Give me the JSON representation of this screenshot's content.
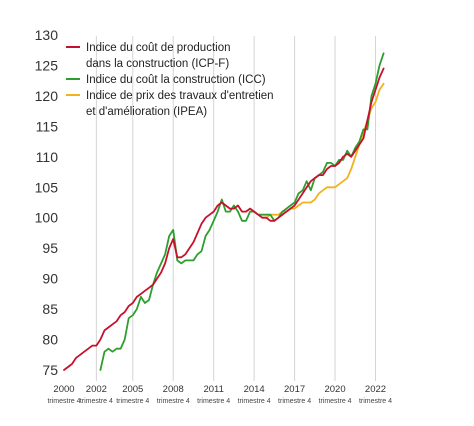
{
  "chart_data": {
    "type": "line",
    "title": "",
    "xlabel": "",
    "ylabel": "",
    "ylim": [
      75,
      130
    ],
    "xlim": [
      2000.75,
      2022.75
    ],
    "yticks": [
      75,
      80,
      85,
      90,
      95,
      100,
      105,
      110,
      115,
      120,
      125,
      130
    ],
    "xticks": [
      {
        "year": "2000",
        "sub": "trimestre 4",
        "x": 2000.75
      },
      {
        "year": "2002",
        "sub": "trimestre 4",
        "x": 2002.75
      },
      {
        "year": "2005",
        "sub": "trimestre 4",
        "x": 2005.0
      },
      {
        "year": "2008",
        "sub": "trimestre 4",
        "x": 2007.5
      },
      {
        "year": "2011",
        "sub": "trimestre 4",
        "x": 2010.0
      },
      {
        "year": "2014",
        "sub": "trimestre 4",
        "x": 2012.5
      },
      {
        "year": "2017",
        "sub": "trimestre 4",
        "x": 2015.0
      },
      {
        "year": "2020",
        "sub": "trimestre 4",
        "x": 2017.5
      },
      {
        "year": "2022",
        "sub": "trimestre 4",
        "x": 2020.0
      }
    ],
    "grid": "vertical",
    "legend_position": "top-left",
    "series": [
      {
        "name": "Indice du coût de production\ndans la construction (ICP-F)",
        "color": "#c8102e",
        "points": [
          [
            2000.75,
            75
          ],
          [
            2001.0,
            75.5
          ],
          [
            2001.25,
            76
          ],
          [
            2001.5,
            77
          ],
          [
            2001.75,
            77.5
          ],
          [
            2002.0,
            78
          ],
          [
            2002.25,
            78.5
          ],
          [
            2002.5,
            79
          ],
          [
            2002.75,
            79
          ],
          [
            2003.0,
            80
          ],
          [
            2003.25,
            81.5
          ],
          [
            2003.5,
            82
          ],
          [
            2003.75,
            82.5
          ],
          [
            2004.0,
            83
          ],
          [
            2004.25,
            84
          ],
          [
            2004.5,
            84.5
          ],
          [
            2004.75,
            85.5
          ],
          [
            2005.0,
            86
          ],
          [
            2005.25,
            87
          ],
          [
            2005.5,
            87.5
          ],
          [
            2005.75,
            88
          ],
          [
            2006.0,
            88.5
          ],
          [
            2006.25,
            89
          ],
          [
            2006.5,
            90
          ],
          [
            2006.75,
            91
          ],
          [
            2007.0,
            92.5
          ],
          [
            2007.25,
            95
          ],
          [
            2007.5,
            96.5
          ],
          [
            2007.75,
            93.5
          ],
          [
            2008.0,
            93.5
          ],
          [
            2008.25,
            94
          ],
          [
            2008.5,
            95
          ],
          [
            2008.75,
            96
          ],
          [
            2009.0,
            97.5
          ],
          [
            2009.25,
            99
          ],
          [
            2009.5,
            100
          ],
          [
            2009.75,
            100.5
          ],
          [
            2010.0,
            101
          ],
          [
            2010.25,
            102
          ],
          [
            2010.5,
            102.5
          ],
          [
            2010.75,
            102
          ],
          [
            2011.0,
            101.5
          ],
          [
            2011.25,
            101.5
          ],
          [
            2011.5,
            102
          ],
          [
            2011.75,
            101
          ],
          [
            2012.0,
            101
          ],
          [
            2012.25,
            101.5
          ],
          [
            2012.5,
            101
          ],
          [
            2012.75,
            100.5
          ],
          [
            2013.0,
            100
          ],
          [
            2013.25,
            100
          ],
          [
            2013.5,
            99.5
          ],
          [
            2013.75,
            99.5
          ],
          [
            2014.0,
            100
          ],
          [
            2014.25,
            100.5
          ],
          [
            2014.5,
            101
          ],
          [
            2014.75,
            101.5
          ],
          [
            2015.0,
            102
          ],
          [
            2015.25,
            103
          ],
          [
            2015.5,
            104
          ],
          [
            2015.75,
            105
          ],
          [
            2016.0,
            106
          ],
          [
            2016.25,
            106.5
          ],
          [
            2016.5,
            107
          ],
          [
            2016.75,
            107
          ],
          [
            2017.0,
            108
          ],
          [
            2017.25,
            108.5
          ],
          [
            2017.5,
            108.5
          ],
          [
            2017.75,
            109
          ],
          [
            2018.0,
            110
          ],
          [
            2018.25,
            110.5
          ],
          [
            2018.5,
            110
          ],
          [
            2018.75,
            111
          ],
          [
            2019.0,
            112
          ],
          [
            2019.25,
            113
          ],
          [
            2019.5,
            116
          ],
          [
            2019.75,
            119
          ],
          [
            2020.0,
            121
          ],
          [
            2020.25,
            123
          ],
          [
            2020.5,
            124.5
          ]
        ]
      },
      {
        "name": "Indice du coût la construction (ICC)",
        "color": "#2e9e2e",
        "points": [
          [
            2003.0,
            75
          ],
          [
            2003.25,
            78
          ],
          [
            2003.5,
            78.5
          ],
          [
            2003.75,
            78
          ],
          [
            2004.0,
            78.5
          ],
          [
            2004.25,
            78.5
          ],
          [
            2004.5,
            80
          ],
          [
            2004.75,
            83.5
          ],
          [
            2005.0,
            84
          ],
          [
            2005.25,
            85
          ],
          [
            2005.5,
            87
          ],
          [
            2005.75,
            86
          ],
          [
            2006.0,
            86.5
          ],
          [
            2006.25,
            89
          ],
          [
            2006.5,
            91
          ],
          [
            2006.75,
            92.5
          ],
          [
            2007.0,
            94
          ],
          [
            2007.25,
            97
          ],
          [
            2007.5,
            98
          ],
          [
            2007.75,
            93
          ],
          [
            2008.0,
            92.5
          ],
          [
            2008.25,
            93
          ],
          [
            2008.5,
            93
          ],
          [
            2008.75,
            93
          ],
          [
            2009.0,
            94
          ],
          [
            2009.25,
            94.5
          ],
          [
            2009.5,
            97
          ],
          [
            2009.75,
            98
          ],
          [
            2010.0,
            99.5
          ],
          [
            2010.25,
            101
          ],
          [
            2010.5,
            103
          ],
          [
            2010.75,
            101
          ],
          [
            2011.0,
            101
          ],
          [
            2011.25,
            102
          ],
          [
            2011.5,
            101
          ],
          [
            2011.75,
            99.5
          ],
          [
            2012.0,
            99.5
          ],
          [
            2012.25,
            101
          ],
          [
            2012.5,
            101
          ],
          [
            2012.75,
            100.5
          ],
          [
            2013.0,
            100.5
          ],
          [
            2013.25,
            100.5
          ],
          [
            2013.5,
            100.5
          ],
          [
            2013.75,
            99.5
          ],
          [
            2014.0,
            100
          ],
          [
            2014.25,
            101
          ],
          [
            2014.5,
            101.5
          ],
          [
            2014.75,
            102
          ],
          [
            2015.0,
            102.5
          ],
          [
            2015.25,
            104
          ],
          [
            2015.5,
            104.5
          ],
          [
            2015.75,
            106
          ],
          [
            2016.0,
            104.5
          ],
          [
            2016.25,
            106.5
          ],
          [
            2016.5,
            107
          ],
          [
            2016.75,
            107.5
          ],
          [
            2017.0,
            109
          ],
          [
            2017.25,
            109
          ],
          [
            2017.5,
            108.5
          ],
          [
            2017.75,
            109.5
          ],
          [
            2018.0,
            109.5
          ],
          [
            2018.25,
            111
          ],
          [
            2018.5,
            110
          ],
          [
            2018.75,
            111.5
          ],
          [
            2019.0,
            112.5
          ],
          [
            2019.25,
            114.5
          ],
          [
            2019.5,
            114.5
          ],
          [
            2019.75,
            120
          ],
          [
            2020.0,
            122
          ],
          [
            2020.25,
            125
          ],
          [
            2020.5,
            127
          ]
        ]
      },
      {
        "name": "Indice de prix des travaux d'entretien\net d'amélioration (IPEA)",
        "color": "#f2b21d",
        "points": [
          [
            2013.0,
            100
          ],
          [
            2013.25,
            100
          ],
          [
            2013.5,
            100.5
          ],
          [
            2013.75,
            100.5
          ],
          [
            2014.0,
            100.5
          ],
          [
            2014.25,
            101
          ],
          [
            2014.5,
            101
          ],
          [
            2014.75,
            101.5
          ],
          [
            2015.0,
            101.5
          ],
          [
            2015.25,
            102
          ],
          [
            2015.5,
            102.5
          ],
          [
            2015.75,
            102.5
          ],
          [
            2016.0,
            102.5
          ],
          [
            2016.25,
            103
          ],
          [
            2016.5,
            104
          ],
          [
            2016.75,
            104.5
          ],
          [
            2017.0,
            105
          ],
          [
            2017.25,
            105
          ],
          [
            2017.5,
            105
          ],
          [
            2017.75,
            105.5
          ],
          [
            2018.0,
            106
          ],
          [
            2018.25,
            106.5
          ],
          [
            2018.5,
            108
          ],
          [
            2018.75,
            110
          ],
          [
            2019.0,
            112
          ],
          [
            2019.25,
            114
          ],
          [
            2019.5,
            116
          ],
          [
            2019.75,
            118
          ],
          [
            2020.0,
            119
          ],
          [
            2020.25,
            121
          ],
          [
            2020.5,
            122
          ]
        ]
      }
    ]
  }
}
